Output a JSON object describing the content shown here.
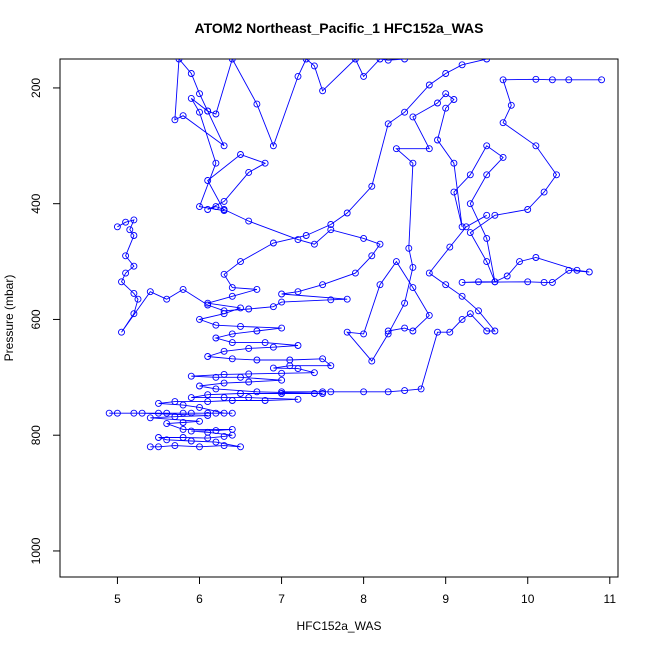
{
  "chart_data": {
    "type": "line",
    "title": "ATOM2 Northeast_Pacific_1 HFC152a_WAS",
    "xlabel": "HFC152a_WAS",
    "ylabel": "Pressure (mbar)",
    "xlim": [
      4.3,
      11.1
    ],
    "ylim": [
      1045,
      150
    ],
    "y_reversed": true,
    "grid": false,
    "x_ticks": [
      "5",
      "6",
      "7",
      "8",
      "9",
      "10",
      "11"
    ],
    "y_ticks": [
      "200",
      "400",
      "600",
      "800",
      "1000"
    ],
    "series_color": "#0000ff",
    "series": [
      {
        "values": [
          [
            5.4,
            820
          ],
          [
            5.5,
            820
          ],
          [
            5.7,
            818
          ],
          [
            6.0,
            820
          ],
          [
            6.3,
            818
          ],
          [
            6.5,
            820
          ],
          [
            6.2,
            812
          ],
          [
            5.9,
            810
          ],
          [
            5.6,
            808
          ],
          [
            5.5,
            804
          ],
          [
            5.8,
            804
          ],
          [
            6.1,
            805
          ],
          [
            6.3,
            802
          ],
          [
            6.4,
            800
          ],
          [
            6.1,
            795
          ],
          [
            5.9,
            793
          ],
          [
            6.2,
            792
          ],
          [
            6.4,
            790
          ],
          [
            5.8,
            790
          ],
          [
            5.6,
            780
          ],
          [
            5.8,
            778
          ],
          [
            6.0,
            776
          ],
          [
            5.4,
            770
          ],
          [
            5.7,
            768
          ],
          [
            6.1,
            766
          ],
          [
            5.3,
            762
          ],
          [
            5.6,
            762
          ],
          [
            5.9,
            762
          ],
          [
            6.2,
            762
          ],
          [
            6.4,
            762
          ],
          [
            5.0,
            762
          ],
          [
            4.9,
            762
          ],
          [
            5.2,
            762
          ],
          [
            5.5,
            762
          ],
          [
            5.8,
            762
          ],
          [
            6.1,
            762
          ],
          [
            6.3,
            762
          ],
          [
            6.0,
            752
          ],
          [
            5.8,
            748
          ],
          [
            5.5,
            745
          ],
          [
            5.7,
            742
          ],
          [
            6.1,
            742
          ],
          [
            6.4,
            740
          ],
          [
            6.8,
            740
          ],
          [
            7.2,
            738
          ],
          [
            6.6,
            735
          ],
          [
            6.3,
            735
          ],
          [
            5.9,
            735
          ],
          [
            6.1,
            730
          ],
          [
            6.5,
            728
          ],
          [
            7.0,
            728
          ],
          [
            7.4,
            728
          ],
          [
            7.5,
            728
          ],
          [
            6.7,
            725
          ],
          [
            6.2,
            720
          ],
          [
            6.0,
            715
          ],
          [
            6.3,
            710
          ],
          [
            6.6,
            708
          ],
          [
            7.0,
            705
          ],
          [
            6.5,
            700
          ],
          [
            6.2,
            700
          ],
          [
            5.9,
            698
          ],
          [
            6.3,
            695
          ],
          [
            6.6,
            694
          ],
          [
            7.0,
            693
          ],
          [
            7.4,
            692
          ],
          [
            7.2,
            685
          ],
          [
            6.9,
            684
          ],
          [
            7.1,
            680
          ],
          [
            7.6,
            680
          ],
          [
            7.5,
            668
          ],
          [
            7.1,
            670
          ],
          [
            6.7,
            670
          ],
          [
            6.4,
            668
          ],
          [
            6.1,
            664
          ],
          [
            6.3,
            655
          ],
          [
            6.6,
            650
          ],
          [
            6.9,
            648
          ],
          [
            7.2,
            645
          ],
          [
            6.8,
            640
          ],
          [
            6.4,
            640
          ],
          [
            6.2,
            632
          ],
          [
            6.4,
            625
          ],
          [
            6.7,
            620
          ],
          [
            7.0,
            615
          ],
          [
            6.5,
            612
          ],
          [
            6.2,
            610
          ],
          [
            6.0,
            600
          ],
          [
            6.3,
            590
          ],
          [
            6.5,
            580
          ],
          [
            6.1,
            572
          ],
          [
            6.4,
            560
          ],
          [
            6.7,
            548
          ],
          [
            6.4,
            545
          ],
          [
            6.3,
            522
          ],
          [
            6.5,
            500
          ],
          [
            6.9,
            468
          ],
          [
            7.3,
            455
          ],
          [
            7.6,
            436
          ],
          [
            7.8,
            416
          ],
          [
            8.1,
            370
          ],
          [
            8.3,
            262
          ],
          [
            8.5,
            242
          ],
          [
            8.8,
            195
          ],
          [
            9.0,
            175
          ],
          [
            9.2,
            160
          ],
          [
            9.5,
            150
          ]
        ]
      },
      {
        "values": [
          [
            5.0,
            440
          ],
          [
            5.1,
            432
          ],
          [
            5.2,
            428
          ],
          [
            5.15,
            445
          ],
          [
            5.2,
            455
          ],
          [
            5.1,
            490
          ],
          [
            5.2,
            508
          ],
          [
            5.1,
            520
          ],
          [
            5.05,
            535
          ],
          [
            5.2,
            555
          ],
          [
            5.25,
            565
          ],
          [
            5.2,
            590
          ],
          [
            5.05,
            622
          ],
          [
            5.4,
            552
          ],
          [
            5.6,
            565
          ],
          [
            5.8,
            548
          ],
          [
            6.1,
            575
          ],
          [
            6.3,
            585
          ],
          [
            6.6,
            582
          ],
          [
            6.9,
            578
          ],
          [
            7.0,
            570
          ],
          [
            7.6,
            566
          ],
          [
            7.8,
            565
          ],
          [
            7.0,
            556
          ],
          [
            7.2,
            552
          ],
          [
            7.5,
            540
          ],
          [
            7.9,
            520
          ],
          [
            8.1,
            490
          ],
          [
            8.2,
            470
          ],
          [
            8.0,
            460
          ],
          [
            7.6,
            445
          ],
          [
            7.4,
            470
          ],
          [
            7.2,
            462
          ],
          [
            6.6,
            430
          ],
          [
            6.3,
            410
          ],
          [
            6.2,
            405
          ],
          [
            6.1,
            410
          ],
          [
            6.3,
            396
          ],
          [
            6.6,
            346
          ],
          [
            6.8,
            330
          ],
          [
            6.5,
            315
          ],
          [
            6.1,
            360
          ],
          [
            6.3,
            412
          ],
          [
            6.0,
            405
          ],
          [
            6.2,
            330
          ],
          [
            6.0,
            242
          ],
          [
            5.9,
            218
          ],
          [
            6.1,
            240
          ],
          [
            6.3,
            300
          ],
          [
            5.8,
            248
          ],
          [
            5.7,
            255
          ],
          [
            5.75,
            150
          ],
          [
            5.9,
            175
          ],
          [
            6.0,
            210
          ],
          [
            6.1,
            240
          ],
          [
            6.2,
            245
          ],
          [
            6.4,
            150
          ],
          [
            6.7,
            228
          ],
          [
            6.9,
            300
          ],
          [
            7.2,
            180
          ],
          [
            7.3,
            150
          ],
          [
            7.4,
            162
          ],
          [
            7.5,
            205
          ],
          [
            7.9,
            150
          ],
          [
            8.0,
            180
          ],
          [
            8.2,
            150
          ],
          [
            8.3,
            152
          ],
          [
            8.5,
            150
          ]
        ]
      },
      {
        "values": [
          [
            8.3,
            620
          ],
          [
            8.5,
            615
          ],
          [
            8.6,
            620
          ],
          [
            8.8,
            593
          ],
          [
            8.6,
            545
          ],
          [
            8.4,
            500
          ],
          [
            8.2,
            540
          ],
          [
            8.0,
            625
          ],
          [
            7.8,
            622
          ],
          [
            8.1,
            672
          ],
          [
            8.3,
            625
          ],
          [
            8.5,
            572
          ],
          [
            8.6,
            510
          ],
          [
            8.55,
            477
          ],
          [
            8.6,
            330
          ],
          [
            8.4,
            305
          ],
          [
            8.8,
            305
          ],
          [
            8.6,
            250
          ],
          [
            8.9,
            226
          ],
          [
            9.0,
            210
          ],
          [
            9.1,
            220
          ],
          [
            9.0,
            235
          ],
          [
            8.9,
            290
          ],
          [
            9.1,
            330
          ],
          [
            9.2,
            440
          ],
          [
            9.1,
            380
          ],
          [
            9.3,
            350
          ],
          [
            9.5,
            300
          ],
          [
            9.7,
            320
          ],
          [
            9.5,
            350
          ],
          [
            9.3,
            400
          ],
          [
            9.5,
            460
          ],
          [
            9.6,
            535
          ],
          [
            9.4,
            535
          ],
          [
            9.2,
            536
          ],
          [
            10.0,
            535
          ],
          [
            10.2,
            536
          ],
          [
            10.3,
            536
          ],
          [
            10.5,
            515
          ],
          [
            10.75,
            518
          ],
          [
            10.6,
            515
          ],
          [
            10.1,
            493
          ],
          [
            9.9,
            500
          ],
          [
            9.75,
            525
          ],
          [
            9.6,
            535
          ],
          [
            9.5,
            500
          ],
          [
            9.3,
            450
          ],
          [
            9.6,
            420
          ],
          [
            10.0,
            410
          ],
          [
            10.2,
            380
          ],
          [
            10.35,
            350
          ],
          [
            10.1,
            300
          ],
          [
            9.7,
            260
          ],
          [
            9.8,
            230
          ],
          [
            9.7,
            186
          ],
          [
            10.1,
            185
          ],
          [
            10.3,
            186
          ],
          [
            10.5,
            186
          ],
          [
            10.9,
            186
          ]
        ]
      },
      {
        "values": [
          [
            7.0,
            725
          ],
          [
            7.5,
            725
          ],
          [
            7.6,
            725
          ],
          [
            8.0,
            725
          ],
          [
            8.3,
            725
          ],
          [
            8.5,
            723
          ],
          [
            8.7,
            720
          ],
          [
            8.9,
            622
          ],
          [
            9.05,
            622
          ],
          [
            9.2,
            600
          ],
          [
            9.3,
            590
          ],
          [
            9.5,
            620
          ],
          [
            9.6,
            620
          ],
          [
            9.4,
            585
          ],
          [
            9.2,
            560
          ],
          [
            9.0,
            540
          ],
          [
            8.8,
            520
          ],
          [
            9.05,
            475
          ],
          [
            9.25,
            440
          ],
          [
            9.5,
            420
          ]
        ]
      }
    ]
  }
}
